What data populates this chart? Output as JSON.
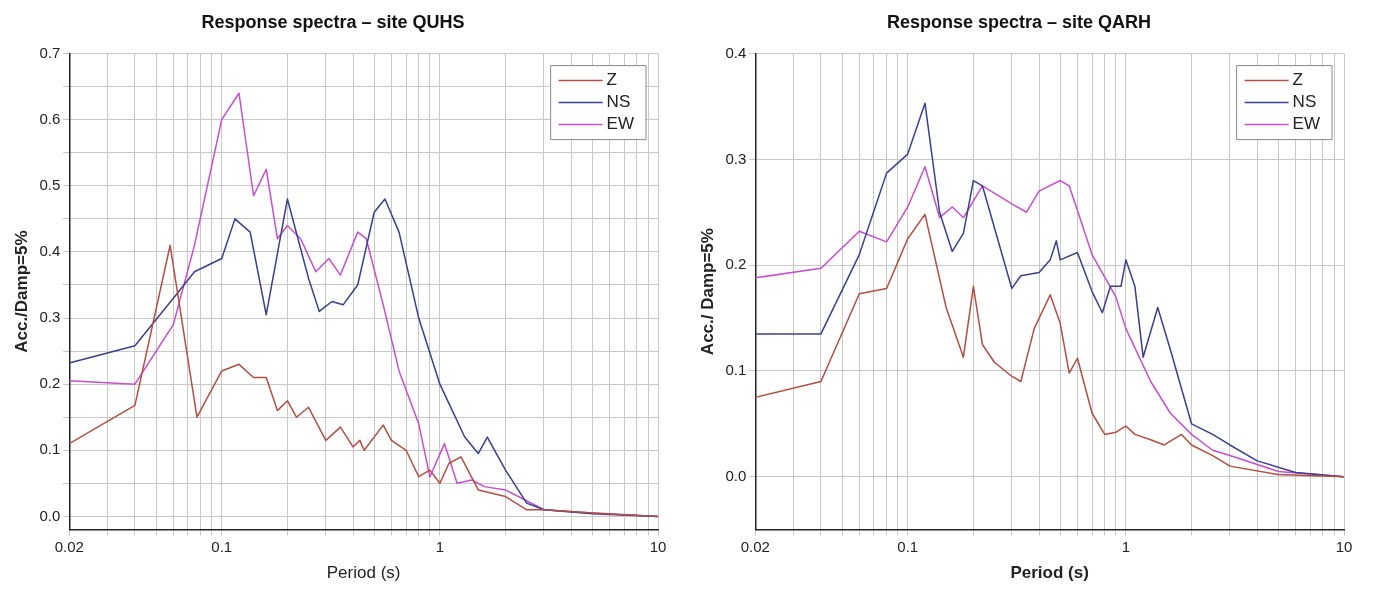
{
  "chart_data": [
    {
      "type": "line",
      "title": "Response spectra – site QUHS",
      "xlabel": "Period (s)",
      "ylabel": "Acc./Damp=5%",
      "log": "x",
      "grid": true,
      "legend": "top right",
      "line_style": "solid",
      "marker": "none",
      "xlim": [
        0.02,
        10
      ],
      "xticks": [
        {
          "value": 0.02,
          "label": "0.02"
        },
        {
          "value": 0.03,
          "label": null
        },
        {
          "value": 0.04,
          "label": null
        },
        {
          "value": 0.05,
          "label": null
        },
        {
          "value": 0.06,
          "label": null
        },
        {
          "value": 0.07,
          "label": null
        },
        {
          "value": 0.08,
          "label": null
        },
        {
          "value": 0.09,
          "label": null
        },
        {
          "value": 0.1,
          "label": "0.1"
        },
        {
          "value": 0.2,
          "label": null
        },
        {
          "value": 0.3,
          "label": null
        },
        {
          "value": 0.4,
          "label": null
        },
        {
          "value": 0.5,
          "label": null
        },
        {
          "value": 0.6,
          "label": null
        },
        {
          "value": 0.7,
          "label": null
        },
        {
          "value": 0.8,
          "label": null
        },
        {
          "value": 0.9,
          "label": null
        },
        {
          "value": 1,
          "label": "1"
        },
        {
          "value": 2,
          "label": null
        },
        {
          "value": 3,
          "label": null
        },
        {
          "value": 4,
          "label": null
        },
        {
          "value": 5,
          "label": null
        },
        {
          "value": 6,
          "label": null
        },
        {
          "value": 7,
          "label": null
        },
        {
          "value": 8,
          "label": null
        },
        {
          "value": 9,
          "label": null
        },
        {
          "value": 10,
          "label": "10"
        }
      ],
      "ylim": [
        -0.02,
        0.7
      ],
      "yticks": [
        {
          "value": 0,
          "label": "0.0"
        },
        {
          "value": 0.05,
          "label": null
        },
        {
          "value": 0.1,
          "label": "0.1"
        },
        {
          "value": 0.15,
          "label": null
        },
        {
          "value": 0.2,
          "label": "0.2"
        },
        {
          "value": 0.25,
          "label": null
        },
        {
          "value": 0.3,
          "label": "0.3"
        },
        {
          "value": 0.35,
          "label": null
        },
        {
          "value": 0.4,
          "label": "0.4"
        },
        {
          "value": 0.45,
          "label": null
        },
        {
          "value": 0.5,
          "label": "0.5"
        },
        {
          "value": 0.55,
          "label": null
        },
        {
          "value": 0.6,
          "label": "0.6"
        },
        {
          "value": 0.65,
          "label": null
        },
        {
          "value": 0.7,
          "label": "0.7"
        }
      ],
      "series": [
        {
          "name": "Z",
          "color": "#b04f45",
          "x": [
            0.02,
            0.04,
            0.058,
            0.077,
            0.1,
            0.12,
            0.14,
            0.16,
            0.18,
            0.2,
            0.22,
            0.25,
            0.3,
            0.35,
            0.4,
            0.43,
            0.45,
            0.55,
            0.6,
            0.7,
            0.8,
            0.9,
            1.0,
            1.1,
            1.25,
            1.5,
            2,
            2.5,
            3,
            5,
            10
          ],
          "values": [
            0.11,
            0.168,
            0.41,
            0.15,
            0.22,
            0.23,
            0.21,
            0.21,
            0.16,
            0.175,
            0.15,
            0.165,
            0.115,
            0.135,
            0.105,
            0.115,
            0.1,
            0.138,
            0.115,
            0.1,
            0.06,
            0.07,
            0.05,
            0.08,
            0.09,
            0.04,
            0.03,
            0.01,
            0.01,
            0.005,
            0
          ]
        },
        {
          "name": "NS",
          "color": "#3b3f8c",
          "x": [
            0.02,
            0.04,
            0.06,
            0.075,
            0.1,
            0.115,
            0.135,
            0.16,
            0.2,
            0.25,
            0.28,
            0.32,
            0.36,
            0.42,
            0.5,
            0.56,
            0.65,
            0.8,
            1,
            1.3,
            1.5,
            1.65,
            2,
            2.5,
            3,
            5,
            10
          ],
          "values": [
            0.232,
            0.258,
            0.33,
            0.37,
            0.39,
            0.45,
            0.43,
            0.305,
            0.48,
            0.36,
            0.31,
            0.325,
            0.32,
            0.35,
            0.46,
            0.48,
            0.43,
            0.3,
            0.2,
            0.12,
            0.095,
            0.12,
            0.07,
            0.02,
            0.01,
            0.004,
            0
          ]
        },
        {
          "name": "EW",
          "color": "#c64fcf",
          "x": [
            0.02,
            0.04,
            0.06,
            0.075,
            0.1,
            0.12,
            0.14,
            0.16,
            0.18,
            0.2,
            0.23,
            0.27,
            0.31,
            0.35,
            0.42,
            0.46,
            0.55,
            0.65,
            0.8,
            0.9,
            1.05,
            1.2,
            1.4,
            1.6,
            2,
            3,
            5,
            10
          ],
          "values": [
            0.205,
            0.2,
            0.29,
            0.41,
            0.6,
            0.64,
            0.485,
            0.525,
            0.42,
            0.44,
            0.42,
            0.37,
            0.39,
            0.365,
            0.43,
            0.42,
            0.32,
            0.22,
            0.14,
            0.06,
            0.11,
            0.05,
            0.055,
            0.045,
            0.04,
            0.01,
            0.005,
            0
          ]
        }
      ]
    },
    {
      "type": "line",
      "title": "Response spectra – site QARH",
      "xlabel": "Period (s)",
      "ylabel": "Acc./ Damp=5%",
      "log": "x",
      "grid": true,
      "legend": "top right",
      "line_style": "solid",
      "marker": "none",
      "xlim": [
        0.02,
        10
      ],
      "xticks": [
        {
          "value": 0.02,
          "label": "0.02"
        },
        {
          "value": 0.03,
          "label": null
        },
        {
          "value": 0.04,
          "label": null
        },
        {
          "value": 0.05,
          "label": null
        },
        {
          "value": 0.06,
          "label": null
        },
        {
          "value": 0.07,
          "label": null
        },
        {
          "value": 0.08,
          "label": null
        },
        {
          "value": 0.09,
          "label": null
        },
        {
          "value": 0.1,
          "label": "0.1"
        },
        {
          "value": 0.2,
          "label": null
        },
        {
          "value": 0.3,
          "label": null
        },
        {
          "value": 0.4,
          "label": null
        },
        {
          "value": 0.5,
          "label": null
        },
        {
          "value": 0.6,
          "label": null
        },
        {
          "value": 0.7,
          "label": null
        },
        {
          "value": 0.8,
          "label": null
        },
        {
          "value": 0.9,
          "label": null
        },
        {
          "value": 1,
          "label": "1"
        },
        {
          "value": 2,
          "label": null
        },
        {
          "value": 3,
          "label": null
        },
        {
          "value": 4,
          "label": null
        },
        {
          "value": 5,
          "label": null
        },
        {
          "value": 6,
          "label": null
        },
        {
          "value": 7,
          "label": null
        },
        {
          "value": 8,
          "label": null
        },
        {
          "value": 9,
          "label": null
        },
        {
          "value": 10,
          "label": "10"
        }
      ],
      "ylim": [
        -0.05,
        0.4
      ],
      "yticks": [
        {
          "value": 0,
          "label": "0.0"
        },
        {
          "value": 0.1,
          "label": "0.1"
        },
        {
          "value": 0.2,
          "label": "0.2"
        },
        {
          "value": 0.3,
          "label": "0.3"
        },
        {
          "value": 0.4,
          "label": "0.4"
        }
      ],
      "series": [
        {
          "name": "Z",
          "color": "#b04f45",
          "x": [
            0.02,
            0.04,
            0.06,
            0.08,
            0.1,
            0.12,
            0.15,
            0.18,
            0.2,
            0.22,
            0.25,
            0.3,
            0.33,
            0.38,
            0.45,
            0.5,
            0.55,
            0.6,
            0.7,
            0.8,
            0.9,
            1.0,
            1.1,
            1.3,
            1.5,
            1.8,
            2,
            2.5,
            3,
            5,
            10
          ],
          "values": [
            0.075,
            0.09,
            0.173,
            0.178,
            0.225,
            0.248,
            0.16,
            0.113,
            0.18,
            0.125,
            0.108,
            0.095,
            0.09,
            0.14,
            0.172,
            0.145,
            0.098,
            0.112,
            0.06,
            0.04,
            0.042,
            0.048,
            0.04,
            0.035,
            0.03,
            0.04,
            0.03,
            0.02,
            0.01,
            0.002,
            0
          ]
        },
        {
          "name": "NS",
          "color": "#3b3f8c",
          "x": [
            0.02,
            0.04,
            0.06,
            0.08,
            0.1,
            0.12,
            0.14,
            0.16,
            0.18,
            0.2,
            0.22,
            0.3,
            0.33,
            0.4,
            0.45,
            0.48,
            0.5,
            0.6,
            0.7,
            0.78,
            0.85,
            0.95,
            1.0,
            1.1,
            1.2,
            1.4,
            1.6,
            2,
            2.5,
            3,
            4,
            6,
            10
          ],
          "values": [
            0.135,
            0.135,
            0.21,
            0.287,
            0.305,
            0.353,
            0.25,
            0.213,
            0.23,
            0.28,
            0.275,
            0.178,
            0.19,
            0.193,
            0.205,
            0.223,
            0.205,
            0.212,
            0.175,
            0.155,
            0.18,
            0.18,
            0.205,
            0.18,
            0.113,
            0.16,
            0.12,
            0.05,
            0.04,
            0.03,
            0.015,
            0.004,
            0
          ]
        },
        {
          "name": "EW",
          "color": "#c64fcf",
          "x": [
            0.02,
            0.04,
            0.06,
            0.08,
            0.1,
            0.12,
            0.14,
            0.16,
            0.18,
            0.22,
            0.3,
            0.35,
            0.4,
            0.5,
            0.55,
            0.7,
            0.9,
            1.0,
            1.3,
            1.6,
            2,
            2.5,
            3,
            5,
            10
          ],
          "values": [
            0.188,
            0.197,
            0.232,
            0.222,
            0.255,
            0.293,
            0.245,
            0.255,
            0.245,
            0.275,
            0.258,
            0.25,
            0.27,
            0.28,
            0.275,
            0.21,
            0.17,
            0.14,
            0.09,
            0.06,
            0.04,
            0.025,
            0.02,
            0.005,
            0
          ]
        }
      ]
    }
  ]
}
